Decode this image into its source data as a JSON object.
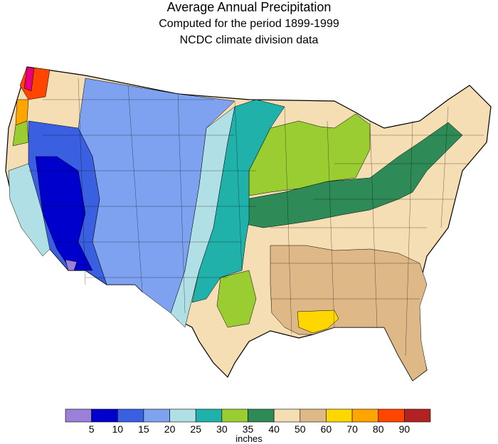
{
  "title": "Average Annual Precipitation",
  "subtitle1": "Computed for the period 1899-1999",
  "subtitle2": "NCDC climate division data",
  "legend": {
    "unit": "inches",
    "ticks": [
      "5",
      "10",
      "15",
      "20",
      "25",
      "30",
      "35",
      "40",
      "50",
      "60",
      "70",
      "80",
      "90"
    ],
    "colors": [
      "#9b7fd8",
      "#0000cd",
      "#3a5fe0",
      "#7ea2f0",
      "#b0dfe6",
      "#20b2aa",
      "#9acd32",
      "#2e8b57",
      "#f5deb3",
      "#deb887",
      "#ffd700",
      "#ffa500",
      "#ff4500",
      "#b22222"
    ]
  },
  "map": {
    "band_colors": {
      "desert": "#0000cd",
      "dry": "#3a5fe0",
      "semiarid": "#7ea2f0",
      "steppe": "#b0dfe6",
      "plains": "#20b2aa",
      "prairie": "#9acd32",
      "midwest": "#2e8b57",
      "east": "#f5deb3",
      "south": "#deb887",
      "gulf": "#ffd700",
      "coast_wet": "#ff4500",
      "coast_very_wet": "#e6007e",
      "lowest": "#9b7fd8"
    }
  }
}
